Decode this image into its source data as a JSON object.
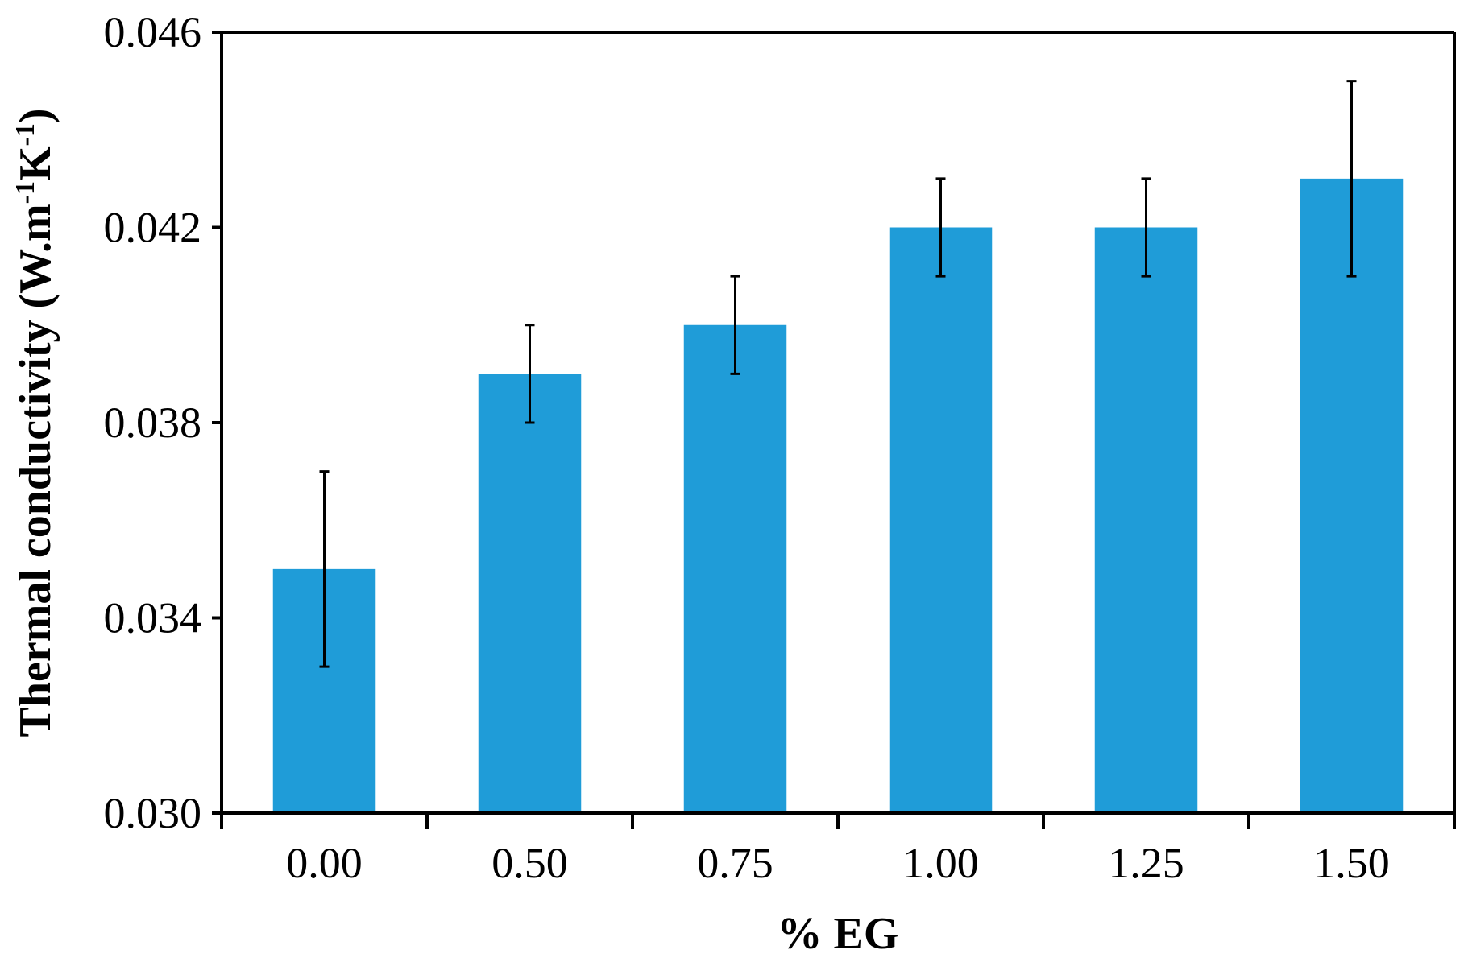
{
  "chart_data": {
    "type": "bar",
    "title": "",
    "xlabel": "% EG",
    "ylabel": {
      "main": "Thermal conductivity (W.m",
      "exp1": "-1",
      "mid": "K",
      "exp2": "-1",
      "close": ")"
    },
    "categories": [
      "0.00",
      "0.50",
      "0.75",
      "1.00",
      "1.25",
      "1.50"
    ],
    "series": [
      {
        "name": "Thermal conductivity",
        "values": [
          0.035,
          0.039,
          0.04,
          0.042,
          0.042,
          0.043
        ],
        "error_low": [
          0.033,
          0.038,
          0.039,
          0.041,
          0.041,
          0.041
        ],
        "error_high": [
          0.037,
          0.04,
          0.041,
          0.043,
          0.043,
          0.045
        ]
      }
    ],
    "ylim": [
      0.03,
      0.046
    ],
    "yticks": [
      "0.030",
      "0.034",
      "0.038",
      "0.042",
      "0.046"
    ],
    "ytick_values": [
      0.03,
      0.034,
      0.038,
      0.042,
      0.046
    ],
    "bar_color": "#1f9cd8",
    "grid": false
  }
}
